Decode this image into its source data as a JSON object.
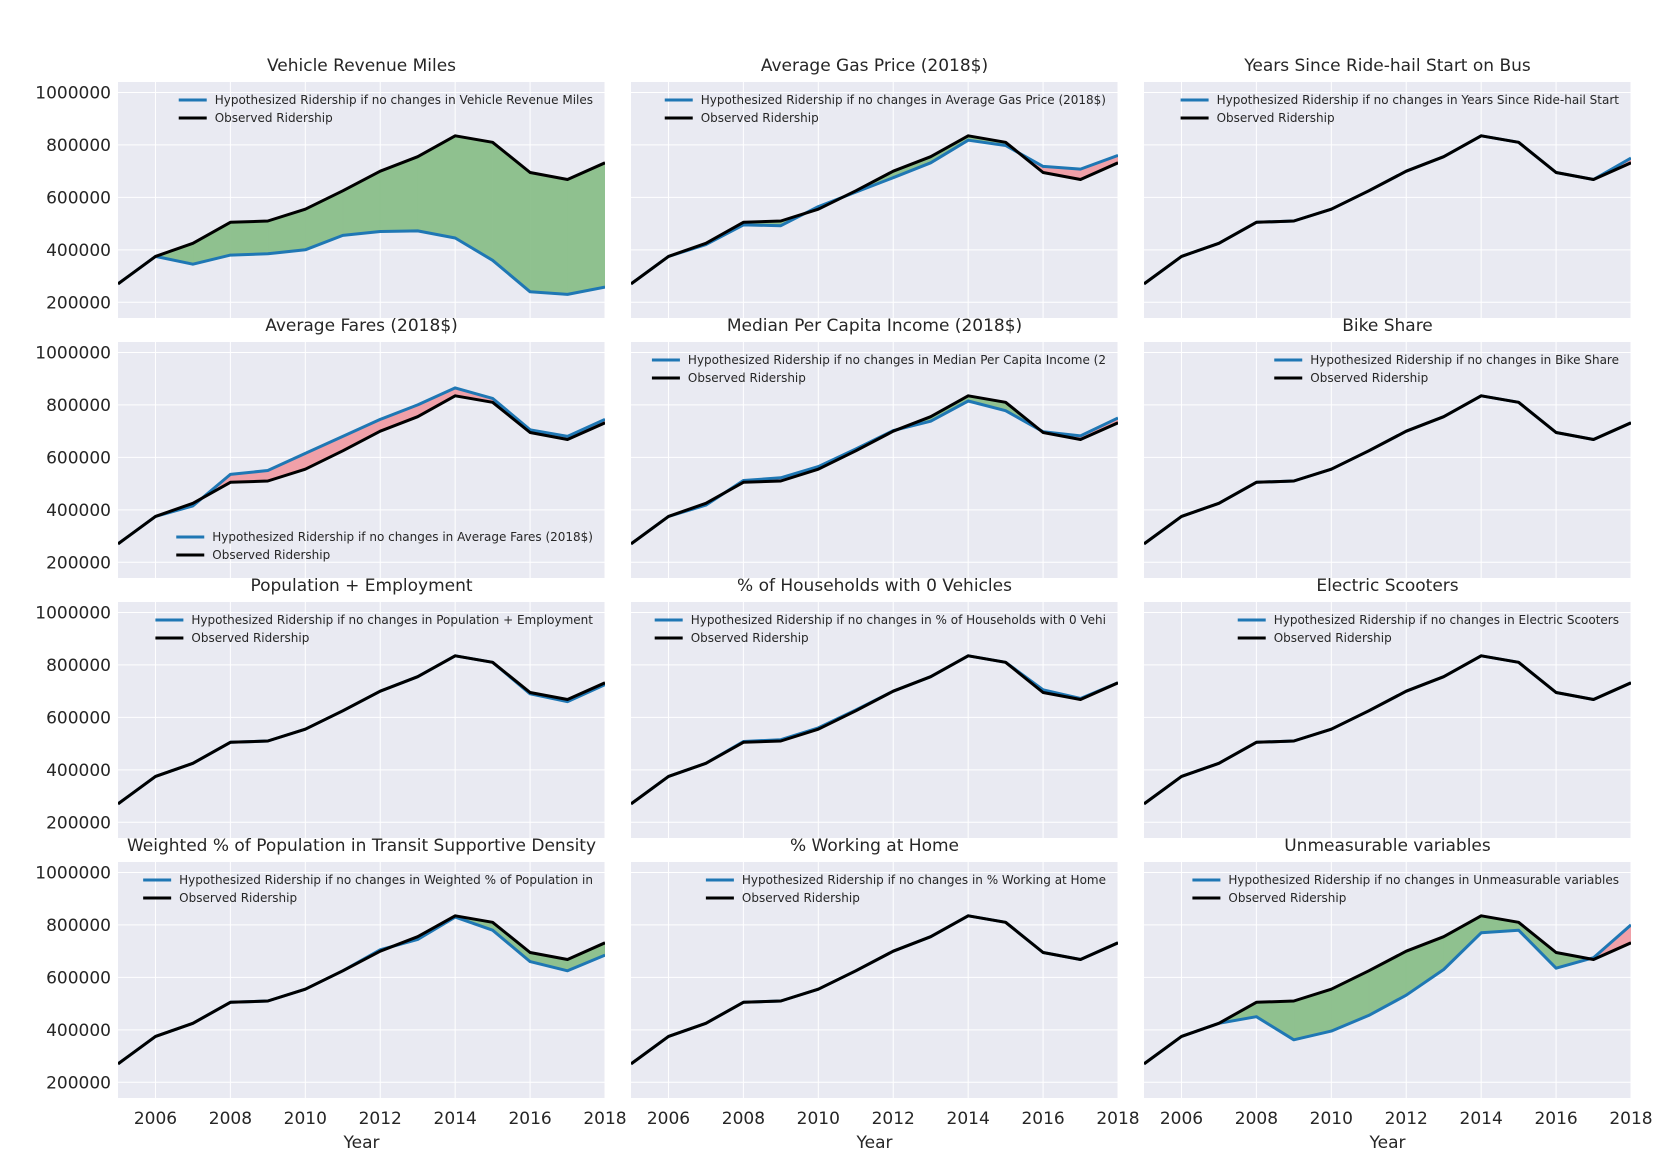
{
  "chart_data": [
    {
      "type": "line",
      "title": "Vehicle Revenue Miles",
      "x": [
        2005,
        2006,
        2007,
        2008,
        2009,
        2010,
        2011,
        2012,
        2013,
        2014,
        2015,
        2016,
        2017,
        2018
      ],
      "series": [
        {
          "name": "Hypothesized Ridership if no changes in Vehicle Revenue Miles",
          "values": [
            270000,
            375000,
            345000,
            380000,
            385000,
            400000,
            455000,
            470000,
            472000,
            445000,
            360000,
            240000,
            230000,
            258000
          ]
        },
        {
          "name": "Observed Ridership",
          "values": [
            270000,
            375000,
            425000,
            505000,
            510000,
            555000,
            625000,
            700000,
            755000,
            835000,
            810000,
            695000,
            668000,
            732000
          ]
        }
      ],
      "legend_loc": "upper right",
      "xlabel": "",
      "ylabel": "",
      "xlim": [
        2005,
        2018
      ],
      "ylim": [
        140000,
        1040000
      ],
      "grid": true,
      "xticks": [
        2006,
        2008,
        2010,
        2012,
        2014,
        2016,
        2018
      ],
      "yticks": [
        200000,
        400000,
        600000,
        800000,
        1000000
      ]
    },
    {
      "type": "line",
      "title": "Average Gas Price (2018$)",
      "x": [
        2005,
        2006,
        2007,
        2008,
        2009,
        2010,
        2011,
        2012,
        2013,
        2014,
        2015,
        2016,
        2017,
        2018
      ],
      "series": [
        {
          "name": "Hypothesized Ridership if no changes in Average Gas Price (2018$)",
          "values": [
            270000,
            375000,
            420000,
            495000,
            492000,
            565000,
            620000,
            675000,
            732000,
            818000,
            798000,
            718000,
            708000,
            760000
          ]
        },
        {
          "name": "Observed Ridership",
          "values": [
            270000,
            375000,
            425000,
            505000,
            510000,
            555000,
            625000,
            700000,
            755000,
            835000,
            810000,
            695000,
            668000,
            732000
          ]
        }
      ],
      "legend_loc": "upper right",
      "xlabel": "",
      "ylabel": "",
      "xlim": [
        2005,
        2018
      ],
      "ylim": [
        140000,
        1040000
      ],
      "grid": true,
      "xticks": [
        2006,
        2008,
        2010,
        2012,
        2014,
        2016,
        2018
      ],
      "yticks": [
        200000,
        400000,
        600000,
        800000,
        1000000
      ]
    },
    {
      "type": "line",
      "title": "Years Since Ride-hail Start on Bus",
      "x": [
        2005,
        2006,
        2007,
        2008,
        2009,
        2010,
        2011,
        2012,
        2013,
        2014,
        2015,
        2016,
        2017,
        2018
      ],
      "series": [
        {
          "name": "Hypothesized Ridership if no changes in Years Since Ride-hail Start",
          "values": [
            270000,
            375000,
            425000,
            505000,
            510000,
            555000,
            625000,
            700000,
            755000,
            835000,
            810000,
            695000,
            668000,
            750000
          ]
        },
        {
          "name": "Observed Ridership",
          "values": [
            270000,
            375000,
            425000,
            505000,
            510000,
            555000,
            625000,
            700000,
            755000,
            835000,
            810000,
            695000,
            668000,
            732000
          ]
        }
      ],
      "legend_loc": "upper right",
      "xlabel": "",
      "ylabel": "",
      "xlim": [
        2005,
        2018
      ],
      "ylim": [
        140000,
        1040000
      ],
      "grid": true,
      "xticks": [
        2006,
        2008,
        2010,
        2012,
        2014,
        2016,
        2018
      ],
      "yticks": [
        200000,
        400000,
        600000,
        800000,
        1000000
      ]
    },
    {
      "type": "line",
      "title": "Average Fares (2018$)",
      "x": [
        2005,
        2006,
        2007,
        2008,
        2009,
        2010,
        2011,
        2012,
        2013,
        2014,
        2015,
        2016,
        2017,
        2018
      ],
      "series": [
        {
          "name": "Hypothesized Ridership if no changes in Average Fares (2018$)",
          "values": [
            270000,
            375000,
            415000,
            535000,
            550000,
            615000,
            680000,
            745000,
            800000,
            865000,
            825000,
            705000,
            680000,
            745000
          ]
        },
        {
          "name": "Observed Ridership",
          "values": [
            270000,
            375000,
            425000,
            505000,
            510000,
            555000,
            625000,
            700000,
            755000,
            835000,
            810000,
            695000,
            668000,
            732000
          ]
        }
      ],
      "legend_loc": "lower right",
      "xlabel": "",
      "ylabel": "",
      "xlim": [
        2005,
        2018
      ],
      "ylim": [
        140000,
        1040000
      ],
      "grid": true,
      "xticks": [
        2006,
        2008,
        2010,
        2012,
        2014,
        2016,
        2018
      ],
      "yticks": [
        200000,
        400000,
        600000,
        800000,
        1000000
      ]
    },
    {
      "type": "line",
      "title": "Median Per Capita Income (2018$)",
      "x": [
        2005,
        2006,
        2007,
        2008,
        2009,
        2010,
        2011,
        2012,
        2013,
        2014,
        2015,
        2016,
        2017,
        2018
      ],
      "series": [
        {
          "name": "Hypothesized Ridership if no changes in Median Per Capita Income (2",
          "values": [
            270000,
            375000,
            418000,
            512000,
            522000,
            565000,
            632000,
            702000,
            738000,
            815000,
            778000,
            698000,
            682000,
            750000
          ]
        },
        {
          "name": "Observed Ridership",
          "values": [
            270000,
            375000,
            425000,
            505000,
            510000,
            555000,
            625000,
            700000,
            755000,
            835000,
            810000,
            695000,
            668000,
            732000
          ]
        }
      ],
      "legend_loc": "upper right",
      "xlabel": "",
      "ylabel": "",
      "xlim": [
        2005,
        2018
      ],
      "ylim": [
        140000,
        1040000
      ],
      "grid": true,
      "xticks": [
        2006,
        2008,
        2010,
        2012,
        2014,
        2016,
        2018
      ],
      "yticks": [
        200000,
        400000,
        600000,
        800000,
        1000000
      ]
    },
    {
      "type": "line",
      "title": "Bike Share",
      "x": [
        2005,
        2006,
        2007,
        2008,
        2009,
        2010,
        2011,
        2012,
        2013,
        2014,
        2015,
        2016,
        2017,
        2018
      ],
      "series": [
        {
          "name": "Hypothesized Ridership if no changes in Bike Share",
          "values": [
            270000,
            375000,
            425000,
            505000,
            510000,
            555000,
            625000,
            700000,
            755000,
            835000,
            810000,
            695000,
            668000,
            732000
          ]
        },
        {
          "name": "Observed Ridership",
          "values": [
            270000,
            375000,
            425000,
            505000,
            510000,
            555000,
            625000,
            700000,
            755000,
            835000,
            810000,
            695000,
            668000,
            732000
          ]
        }
      ],
      "legend_loc": "upper right",
      "xlabel": "",
      "ylabel": "",
      "xlim": [
        2005,
        2018
      ],
      "ylim": [
        140000,
        1040000
      ],
      "grid": true,
      "xticks": [
        2006,
        2008,
        2010,
        2012,
        2014,
        2016,
        2018
      ],
      "yticks": [
        200000,
        400000,
        600000,
        800000,
        1000000
      ]
    },
    {
      "type": "line",
      "title": "Population + Employment",
      "x": [
        2005,
        2006,
        2007,
        2008,
        2009,
        2010,
        2011,
        2012,
        2013,
        2014,
        2015,
        2016,
        2017,
        2018
      ],
      "series": [
        {
          "name": "Hypothesized Ridership if no changes in Population + Employment",
          "values": [
            270000,
            375000,
            425000,
            505000,
            510000,
            555000,
            625000,
            700000,
            755000,
            835000,
            810000,
            690000,
            660000,
            725000
          ]
        },
        {
          "name": "Observed Ridership",
          "values": [
            270000,
            375000,
            425000,
            505000,
            510000,
            555000,
            625000,
            700000,
            755000,
            835000,
            810000,
            695000,
            668000,
            732000
          ]
        }
      ],
      "legend_loc": "upper right",
      "xlabel": "",
      "ylabel": "",
      "xlim": [
        2005,
        2018
      ],
      "ylim": [
        140000,
        1040000
      ],
      "grid": true,
      "xticks": [
        2006,
        2008,
        2010,
        2012,
        2014,
        2016,
        2018
      ],
      "yticks": [
        200000,
        400000,
        600000,
        800000,
        1000000
      ]
    },
    {
      "type": "line",
      "title": "% of Households with 0 Vehicles",
      "x": [
        2005,
        2006,
        2007,
        2008,
        2009,
        2010,
        2011,
        2012,
        2013,
        2014,
        2015,
        2016,
        2017,
        2018
      ],
      "series": [
        {
          "name": "Hypothesized Ridership if no changes in % of Households with 0 Vehi",
          "values": [
            270000,
            375000,
            425000,
            508000,
            515000,
            560000,
            628000,
            700000,
            755000,
            835000,
            810000,
            705000,
            672000,
            732000
          ]
        },
        {
          "name": "Observed Ridership",
          "values": [
            270000,
            375000,
            425000,
            505000,
            510000,
            555000,
            625000,
            700000,
            755000,
            835000,
            810000,
            695000,
            668000,
            732000
          ]
        }
      ],
      "legend_loc": "upper right",
      "xlabel": "",
      "ylabel": "",
      "xlim": [
        2005,
        2018
      ],
      "ylim": [
        140000,
        1040000
      ],
      "grid": true,
      "xticks": [
        2006,
        2008,
        2010,
        2012,
        2014,
        2016,
        2018
      ],
      "yticks": [
        200000,
        400000,
        600000,
        800000,
        1000000
      ]
    },
    {
      "type": "line",
      "title": "Electric Scooters",
      "x": [
        2005,
        2006,
        2007,
        2008,
        2009,
        2010,
        2011,
        2012,
        2013,
        2014,
        2015,
        2016,
        2017,
        2018
      ],
      "series": [
        {
          "name": "Hypothesized Ridership if no changes in Electric Scooters",
          "values": [
            270000,
            375000,
            425000,
            505000,
            510000,
            555000,
            625000,
            700000,
            755000,
            835000,
            810000,
            695000,
            668000,
            732000
          ]
        },
        {
          "name": "Observed Ridership",
          "values": [
            270000,
            375000,
            425000,
            505000,
            510000,
            555000,
            625000,
            700000,
            755000,
            835000,
            810000,
            695000,
            668000,
            732000
          ]
        }
      ],
      "legend_loc": "upper right",
      "xlabel": "Year",
      "ylabel": "",
      "xlim": [
        2005,
        2018
      ],
      "ylim": [
        140000,
        1040000
      ],
      "grid": true,
      "xticks": [
        2006,
        2008,
        2010,
        2012,
        2014,
        2016,
        2018
      ],
      "yticks": [
        200000,
        400000,
        600000,
        800000,
        1000000
      ]
    },
    {
      "type": "line",
      "title": "Weighted % of Population in Transit Supportive Density",
      "x": [
        2005,
        2006,
        2007,
        2008,
        2009,
        2010,
        2011,
        2012,
        2013,
        2014,
        2015,
        2016,
        2017,
        2018
      ],
      "series": [
        {
          "name": "Hypothesized Ridership if no changes in Weighted % of Population in",
          "values": [
            270000,
            375000,
            425000,
            505000,
            510000,
            555000,
            625000,
            705000,
            745000,
            830000,
            780000,
            660000,
            625000,
            685000
          ]
        },
        {
          "name": "Observed Ridership",
          "values": [
            270000,
            375000,
            425000,
            505000,
            510000,
            555000,
            625000,
            700000,
            755000,
            835000,
            810000,
            695000,
            668000,
            732000
          ]
        }
      ],
      "legend_loc": "upper right",
      "xlabel": "Year",
      "ylabel": "",
      "xlim": [
        2005,
        2018
      ],
      "ylim": [
        140000,
        1040000
      ],
      "grid": true,
      "xticks": [
        2006,
        2008,
        2010,
        2012,
        2014,
        2016,
        2018
      ],
      "yticks": [
        200000,
        400000,
        600000,
        800000,
        1000000
      ]
    },
    {
      "type": "line",
      "title": "% Working at Home",
      "x": [
        2005,
        2006,
        2007,
        2008,
        2009,
        2010,
        2011,
        2012,
        2013,
        2014,
        2015,
        2016,
        2017,
        2018
      ],
      "series": [
        {
          "name": "Hypothesized Ridership if no changes in % Working at Home",
          "values": [
            270000,
            375000,
            425000,
            505000,
            510000,
            555000,
            625000,
            700000,
            755000,
            835000,
            810000,
            695000,
            668000,
            732000
          ]
        },
        {
          "name": "Observed Ridership",
          "values": [
            270000,
            375000,
            425000,
            505000,
            510000,
            555000,
            625000,
            700000,
            755000,
            835000,
            810000,
            695000,
            668000,
            732000
          ]
        }
      ],
      "legend_loc": "upper right",
      "xlabel": "Year",
      "ylabel": "",
      "xlim": [
        2005,
        2018
      ],
      "ylim": [
        140000,
        1040000
      ],
      "grid": true,
      "xticks": [
        2006,
        2008,
        2010,
        2012,
        2014,
        2016,
        2018
      ],
      "yticks": [
        200000,
        400000,
        600000,
        800000,
        1000000
      ]
    },
    {
      "type": "line",
      "title": "Unmeasurable variables",
      "x": [
        2005,
        2006,
        2007,
        2008,
        2009,
        2010,
        2011,
        2012,
        2013,
        2014,
        2015,
        2016,
        2017,
        2018
      ],
      "series": [
        {
          "name": "Hypothesized Ridership if no changes in Unmeasurable variables",
          "values": [
            270000,
            375000,
            425000,
            450000,
            362000,
            395000,
            455000,
            532000,
            630000,
            770000,
            780000,
            635000,
            675000,
            800000
          ]
        },
        {
          "name": "Observed Ridership",
          "values": [
            270000,
            375000,
            425000,
            505000,
            510000,
            555000,
            625000,
            700000,
            755000,
            835000,
            810000,
            695000,
            668000,
            732000
          ]
        }
      ],
      "legend_loc": "upper right",
      "xlabel": "Year",
      "ylabel": "",
      "xlim": [
        2005,
        2018
      ],
      "ylim": [
        140000,
        1040000
      ],
      "grid": true,
      "xticks": [
        2006,
        2008,
        2010,
        2012,
        2014,
        2016,
        2018
      ],
      "yticks": [
        200000,
        400000,
        600000,
        800000,
        1000000
      ]
    }
  ],
  "colors": {
    "hypothesized": "#1f77b4",
    "observed": "#000000",
    "fill_below": "#8fc18f",
    "fill_above": "#f0a0a8",
    "axes_bg": "#e9eaf2",
    "grid": "#ffffff"
  }
}
